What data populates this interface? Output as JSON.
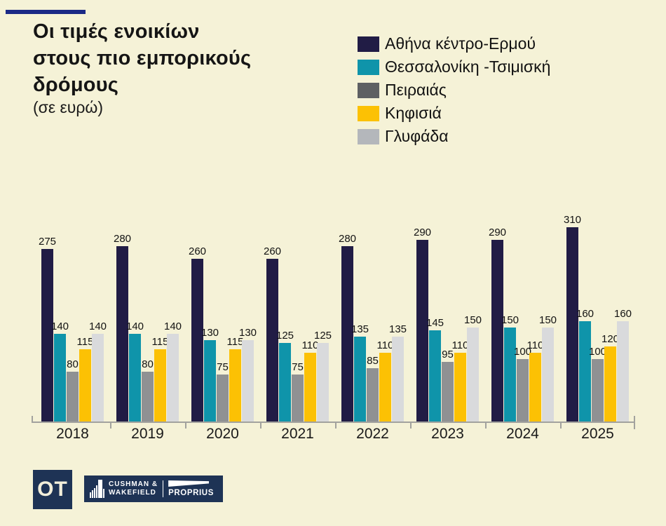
{
  "background": "#f5f2d7",
  "accent_colors": {
    "header_dash": "#1b2a86",
    "axis": "#a2a29e",
    "logo_navy": "#1e3355",
    "logo_text_cream": "#f2eeda"
  },
  "header": {
    "title_lines": [
      "Οι τιμές ενοικίων",
      "στους πιο εμπορικούς",
      "δρόμους"
    ],
    "subtitle": "(σε ευρώ)"
  },
  "legend": [
    {
      "label": "Αθήνα κέντρο-Ερμού",
      "swatch": "#211c45"
    },
    {
      "label": "Θεσσαλονίκη -Τσιμισκή",
      "swatch": "#0f94aa"
    },
    {
      "label": "Πειραιάς",
      "swatch": "#5e6063"
    },
    {
      "label": "Κηφισιά",
      "swatch": "#fcc104"
    },
    {
      "label": "Γλυφάδα",
      "swatch": "#b4b7bb"
    }
  ],
  "chart_data": {
    "type": "bar",
    "title": "Οι τιμές ενοικίων στους πιο εμπορικούς δρόμους",
    "subtitle": "(σε ευρώ)",
    "categories": [
      "2018",
      "2019",
      "2020",
      "2021",
      "2022",
      "2023",
      "2024",
      "2025"
    ],
    "series": [
      {
        "name": "Αθήνα κέντρο-Ερμού",
        "color": "#211c45",
        "values": [
          275,
          280,
          260,
          260,
          280,
          290,
          290,
          310
        ]
      },
      {
        "name": "Θεσσαλονίκη -Τσιμισκή",
        "color": "#0f94aa",
        "values": [
          140,
          140,
          130,
          125,
          135,
          145,
          150,
          160
        ]
      },
      {
        "name": "Πειραιάς",
        "color": "#8f9193",
        "values": [
          80,
          80,
          75,
          75,
          85,
          95,
          100,
          100
        ]
      },
      {
        "name": "Κηφισιά",
        "color": "#fcc104",
        "values": [
          115,
          115,
          115,
          110,
          110,
          110,
          110,
          120
        ]
      },
      {
        "name": "Γλυφάδα",
        "color": "#d9dadc",
        "values": [
          140,
          140,
          130,
          125,
          135,
          150,
          150,
          160
        ]
      }
    ],
    "ylim": [
      0,
      310
    ],
    "xlabel": "",
    "ylabel": "",
    "grid": false,
    "data_labels": true,
    "legend_position": "top-right"
  },
  "footer": {
    "ot_label": "OT",
    "cw_line1": "CUSHMAN &",
    "cw_line2": "WAKEFIELD",
    "cw_brand2": "PROPRIUS"
  }
}
